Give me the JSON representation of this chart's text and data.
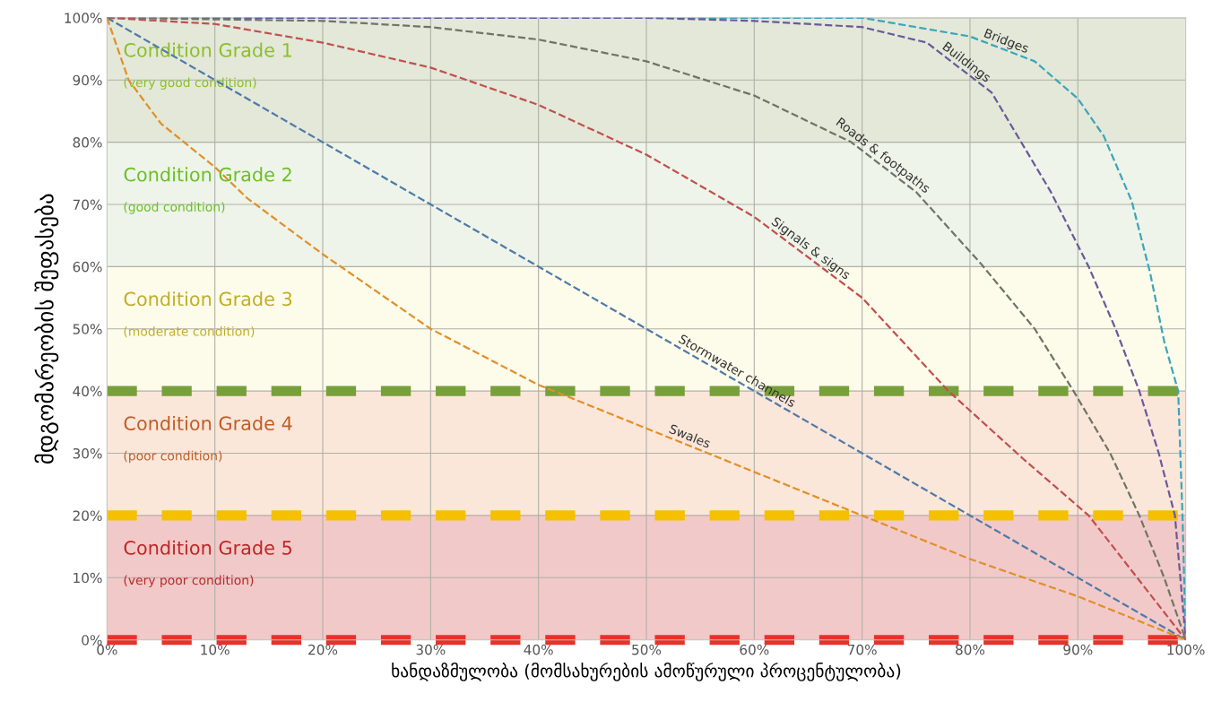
{
  "chart_data": {
    "type": "line",
    "xlabel": "ხანდაზმულობა (მომსახურების ამოწურული პროცენტულობა)",
    "ylabel": "მდგომარეობის შეფასება",
    "xlim": [
      0,
      100
    ],
    "ylim": [
      0,
      100
    ],
    "xticks": [
      {
        "value": 0,
        "label": "0%"
      },
      {
        "value": 10,
        "label": "10%"
      },
      {
        "value": 20,
        "label": "20%"
      },
      {
        "value": 30,
        "label": "30%"
      },
      {
        "value": 40,
        "label": "40%"
      },
      {
        "value": 50,
        "label": "50%"
      },
      {
        "value": 60,
        "label": "60%"
      },
      {
        "value": 70,
        "label": "70%"
      },
      {
        "value": 80,
        "label": "80%"
      },
      {
        "value": 90,
        "label": "90%"
      },
      {
        "value": 100,
        "label": "100%"
      }
    ],
    "yticks": [
      {
        "value": 0,
        "label": "0%"
      },
      {
        "value": 10,
        "label": "10%"
      },
      {
        "value": 20,
        "label": "20%"
      },
      {
        "value": 30,
        "label": "30%"
      },
      {
        "value": 40,
        "label": "40%"
      },
      {
        "value": 50,
        "label": "50%"
      },
      {
        "value": 60,
        "label": "60%"
      },
      {
        "value": 70,
        "label": "70%"
      },
      {
        "value": 80,
        "label": "80%"
      },
      {
        "value": 90,
        "label": "90%"
      },
      {
        "value": 100,
        "label": "100%"
      }
    ],
    "grid": true,
    "line_style": "dashed",
    "marker": "none",
    "series": [
      {
        "name": "Bridges",
        "color": "#3aa6b9",
        "x": [
          0,
          70,
          80,
          86,
          90,
          92.4,
          95,
          96.7,
          98,
          99.3,
          99.7,
          100
        ],
        "values": [
          100,
          100,
          97,
          93,
          87,
          81,
          70.5,
          59,
          48,
          40,
          20,
          0
        ]
      },
      {
        "name": "Buildings",
        "color": "#6a5a9a",
        "x": [
          0,
          50,
          60,
          70,
          76,
          82,
          87.5,
          91,
          93.5,
          95.7,
          97.5,
          99,
          100
        ],
        "values": [
          100,
          100,
          99.5,
          98.5,
          96,
          88,
          72,
          60,
          50,
          40,
          30,
          20,
          0
        ]
      },
      {
        "name": "Roads & footpaths",
        "color": "#6e7566",
        "x": [
          0,
          20,
          30,
          40,
          50,
          60,
          69,
          75,
          81,
          86,
          89.6,
          93,
          95.7,
          98,
          100
        ],
        "values": [
          100,
          99.5,
          98.5,
          96.5,
          93,
          87.5,
          80,
          72,
          60.5,
          50,
          40,
          30,
          20,
          10,
          0
        ]
      },
      {
        "name": "Signals & signs",
        "color": "#c0504d",
        "x": [
          0,
          10,
          20,
          30,
          40,
          50,
          60,
          70,
          78,
          85,
          91,
          100
        ],
        "values": [
          100,
          99,
          96,
          92,
          86,
          78,
          68,
          55,
          40,
          29,
          20,
          0
        ]
      },
      {
        "name": "Stormwater channels",
        "color": "#4f7aa8",
        "x": [
          0,
          10,
          20,
          30,
          40,
          50,
          60,
          70,
          80,
          90,
          100
        ],
        "values": [
          100,
          90,
          80,
          70,
          60,
          50,
          40,
          30,
          20,
          10,
          0
        ]
      },
      {
        "name": "Swales",
        "color": "#e0902a",
        "x": [
          0,
          2,
          5,
          10,
          13,
          20,
          30,
          40,
          50,
          60,
          70,
          80,
          90,
          100
        ],
        "values": [
          100,
          90,
          83,
          76,
          71,
          62,
          50,
          41,
          34,
          27,
          20,
          13,
          7,
          0
        ]
      }
    ],
    "bands": [
      {
        "axis": "y",
        "from": 80,
        "to": 100,
        "label": "Condition Grade 1\n(very good condition)",
        "color": "#e3e8d9"
      },
      {
        "axis": "y",
        "from": 60,
        "to": 80,
        "label": "Condition Grade 2\n(good condition)",
        "color": "#eef4e9"
      },
      {
        "axis": "y",
        "from": 40,
        "to": 60,
        "label": "Condition Grade 3\n(moderate condition)",
        "color": "#fdfbea"
      },
      {
        "axis": "y",
        "from": 20,
        "to": 40,
        "label": "Condition Grade 4\n(poor condition)",
        "color": "#fbe6da"
      },
      {
        "axis": "y",
        "from": 0,
        "to": 20,
        "label": "Condition Grade 5\n(very poor condition)",
        "color": "#f2c9c9"
      }
    ],
    "ref_lines": [
      {
        "axis": "y",
        "value": 40,
        "color": "#77a03a",
        "line_style": "dashed"
      },
      {
        "axis": "y",
        "value": 20,
        "color": "#f5c000",
        "line_style": "dashed"
      },
      {
        "axis": "y",
        "value": 0,
        "color": "#e8312a",
        "line_style": "dashed"
      }
    ]
  }
}
